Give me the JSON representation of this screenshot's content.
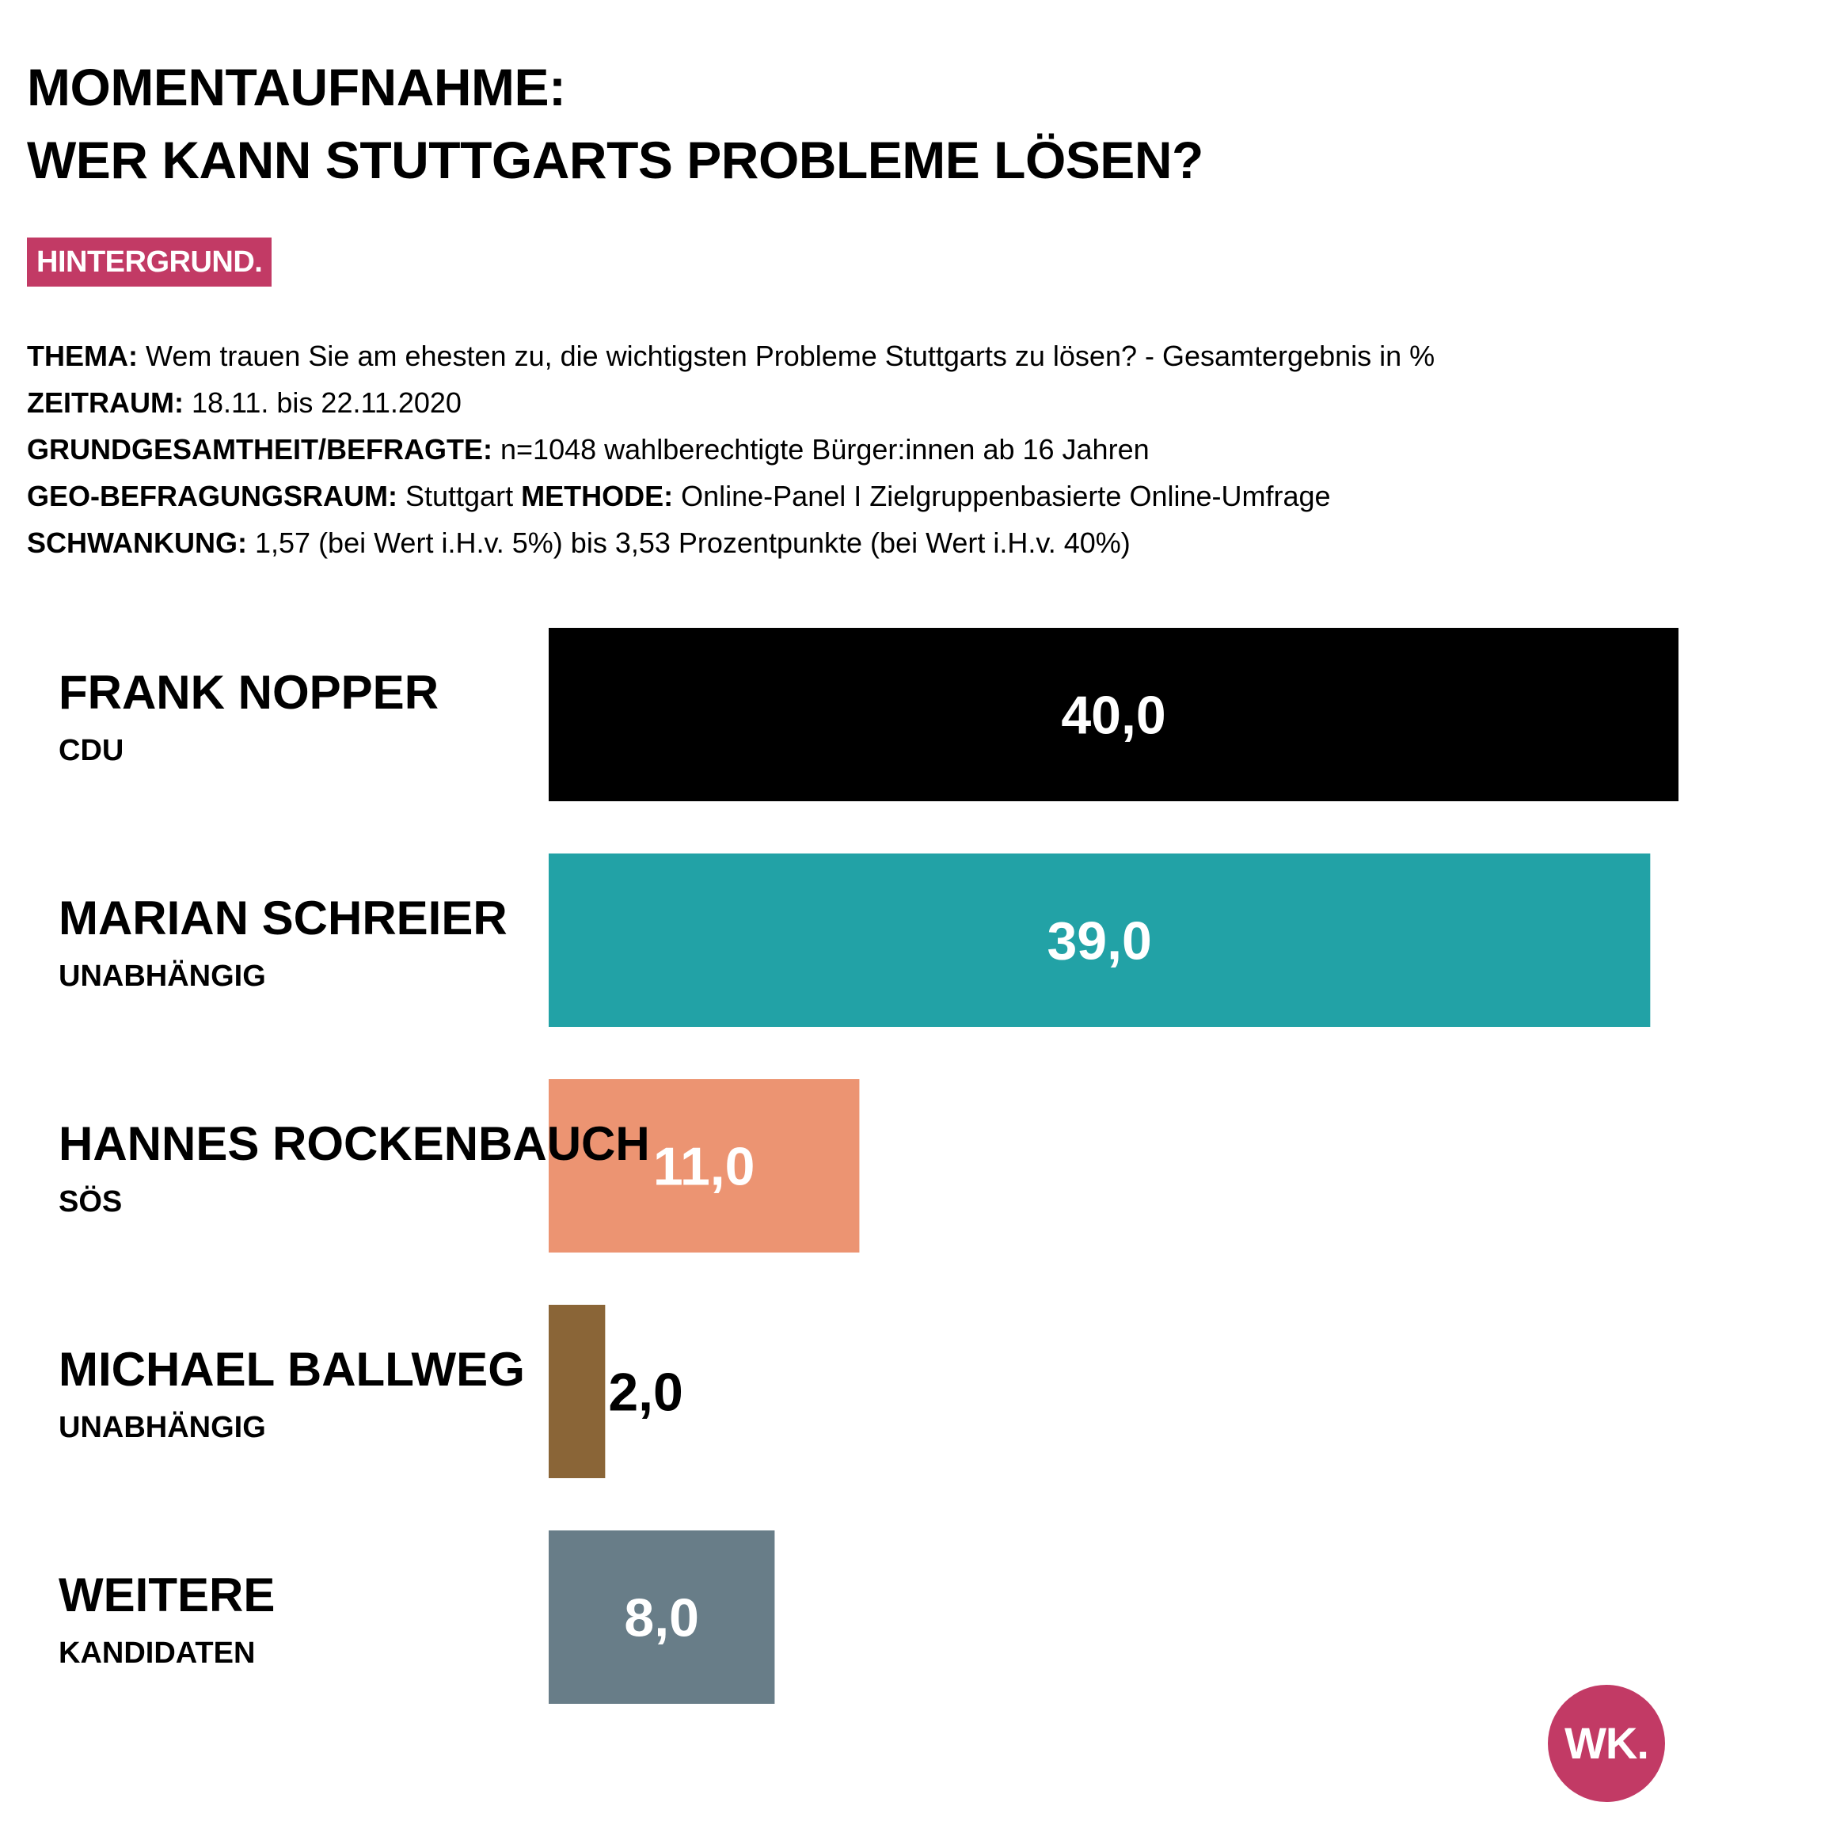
{
  "title": {
    "line1": "MOMENTAUFNAHME:",
    "line2": "WER KANN STUTTGARTS PROBLEME LÖSEN?"
  },
  "tag": "HINTERGRUND.",
  "meta": {
    "thema_label": "THEMA:",
    "thema": "Wem trauen Sie am ehesten zu, die wichtigsten Probleme Stuttgarts zu lösen? - Gesamtergebnis in %",
    "zeitraum_label": "ZEITRAUM:",
    "zeitraum": "18.11. bis 22.11.2020",
    "grund_label": "GRUNDGESAMTHEIT/BEFRAGTE:",
    "grund": "n=1048 wahlberechtigte Bürger:innen ab 16 Jahren",
    "geo_label": "GEO-BEFRAGUNGSRAUM:",
    "geo": "Stuttgart",
    "methode_label": "METHODE:",
    "methode": "Online-Panel I Zielgruppenbasierte Online-Umfrage",
    "schwankung_label": "SCHWANKUNG:",
    "schwankung": "1,57 (bei Wert i.H.v. 5%) bis 3,53 Prozentpunkte (bei Wert i.H.v. 40%)"
  },
  "chart_data": {
    "type": "bar",
    "orientation": "horizontal",
    "categories": [
      "FRANK NOPPER",
      "MARIAN SCHREIER",
      "HANNES ROCKENBAUCH",
      "MICHAEL BALLWEG",
      "WEITERE"
    ],
    "subtitles": [
      "CDU",
      "UNABHÄNGIG",
      "SÖS",
      "UNABHÄNGIG",
      "KANDIDATEN"
    ],
    "values": [
      40.0,
      39.0,
      11.0,
      2.0,
      8.0
    ],
    "value_labels": [
      "40,0",
      "39,0",
      "11,0",
      "2,0",
      "8,0"
    ],
    "colors": [
      "#000000",
      "#22a2a6",
      "#ec9472",
      "#8a6537",
      "#687d88"
    ],
    "label_colors": [
      "#ffffff",
      "#ffffff",
      "#ffffff",
      "#000000",
      "#ffffff"
    ],
    "xlim": [
      0,
      40
    ],
    "grid": false,
    "legend": "none"
  },
  "logo": "WK."
}
